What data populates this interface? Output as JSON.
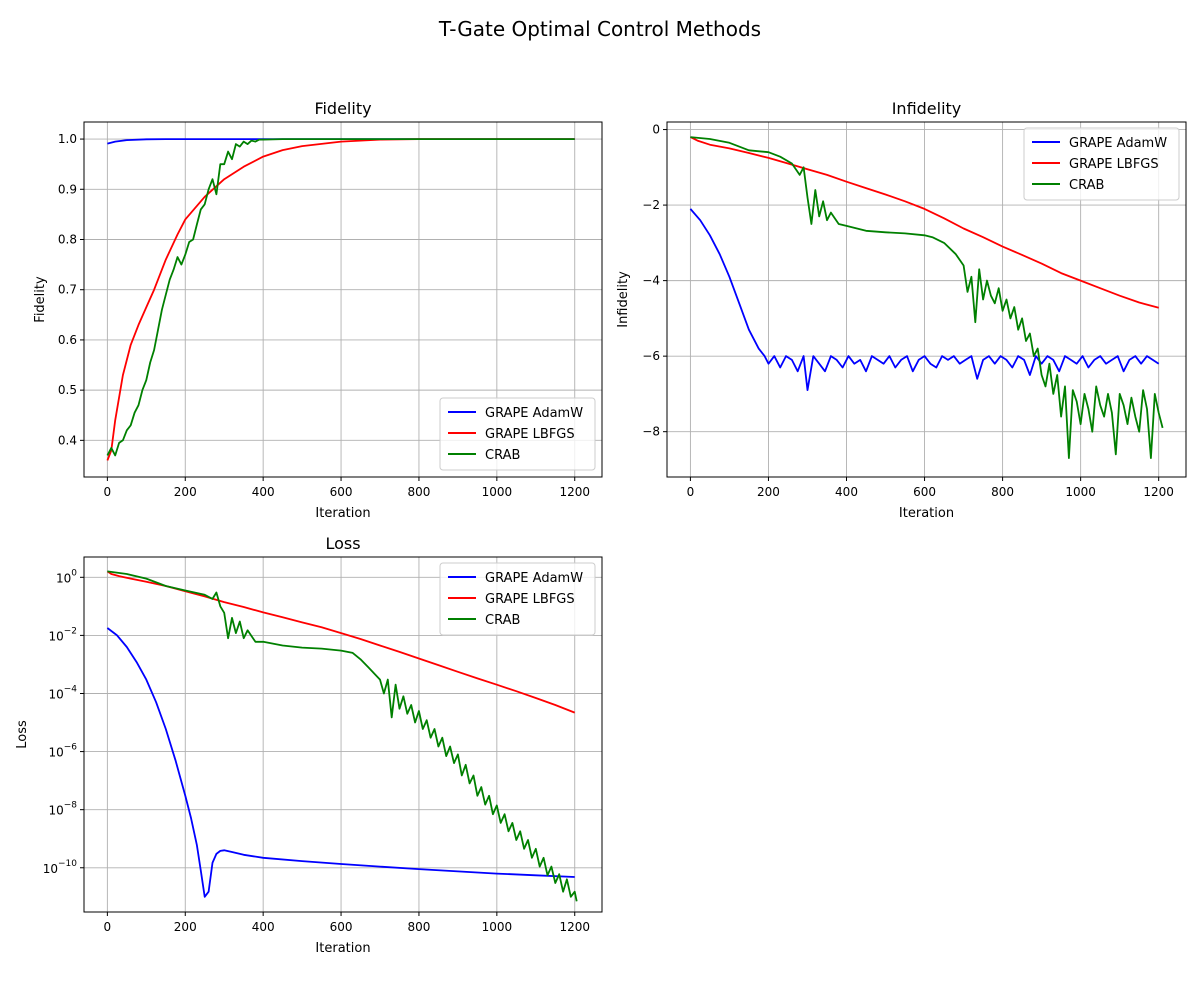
{
  "figure": {
    "title": "T-Gate Optimal Control Methods"
  },
  "series_styles": [
    {
      "name": "GRAPE AdamW",
      "color": "#0000ff"
    },
    {
      "name": "GRAPE LBFGS",
      "color": "#ff0000"
    },
    {
      "name": "CRAB",
      "color": "#008000"
    }
  ],
  "chart_data": [
    {
      "id": "fidelity",
      "type": "line",
      "title": "Fidelity",
      "xlabel": "Iteration",
      "ylabel": "Fidelity",
      "xlim": [
        -60,
        1270
      ],
      "ylim": [
        0.327,
        1.034
      ],
      "xticks": [
        0,
        200,
        400,
        600,
        800,
        1000,
        1200
      ],
      "xtick_labels": [
        "0",
        "200",
        "400",
        "600",
        "800",
        "1000",
        "1200"
      ],
      "yticks": [
        0.4,
        0.5,
        0.6,
        0.7,
        0.8,
        0.9,
        1.0
      ],
      "ytick_labels": [
        "0.4",
        "0.5",
        "0.6",
        "0.7",
        "0.8",
        "0.9",
        "1.0"
      ],
      "grid": true,
      "legend_position": "lower-right",
      "series": [
        {
          "name": "GRAPE AdamW",
          "x": [
            0,
            20,
            50,
            100,
            150,
            200,
            400,
            600,
            800,
            1000,
            1200
          ],
          "y": [
            0.991,
            0.995,
            0.998,
            0.9995,
            1.0,
            1.0,
            1.0,
            1.0,
            1.0,
            1.0,
            1.0
          ]
        },
        {
          "name": "GRAPE LBFGS",
          "x": [
            0,
            10,
            20,
            40,
            60,
            80,
            100,
            120,
            150,
            180,
            200,
            250,
            300,
            350,
            400,
            450,
            500,
            600,
            700,
            800,
            1000,
            1200
          ],
          "y": [
            0.36,
            0.38,
            0.44,
            0.53,
            0.59,
            0.63,
            0.665,
            0.7,
            0.76,
            0.81,
            0.84,
            0.885,
            0.92,
            0.945,
            0.965,
            0.978,
            0.986,
            0.995,
            0.999,
            1.0,
            1.0,
            1.0
          ]
        },
        {
          "name": "CRAB",
          "x": [
            0,
            10,
            20,
            30,
            40,
            50,
            60,
            70,
            80,
            90,
            100,
            110,
            120,
            130,
            140,
            150,
            160,
            170,
            180,
            190,
            200,
            210,
            220,
            230,
            240,
            250,
            260,
            270,
            280,
            290,
            300,
            310,
            320,
            330,
            340,
            350,
            360,
            370,
            380,
            390,
            400,
            450,
            500,
            600,
            800,
            1000,
            1200
          ],
          "y": [
            0.37,
            0.385,
            0.37,
            0.395,
            0.4,
            0.42,
            0.43,
            0.455,
            0.47,
            0.5,
            0.52,
            0.555,
            0.58,
            0.62,
            0.66,
            0.69,
            0.72,
            0.74,
            0.765,
            0.75,
            0.77,
            0.795,
            0.8,
            0.83,
            0.86,
            0.87,
            0.9,
            0.92,
            0.89,
            0.95,
            0.95,
            0.975,
            0.96,
            0.99,
            0.985,
            0.995,
            0.99,
            0.997,
            0.995,
            0.999,
            0.999,
            1.0,
            1.0,
            1.0,
            1.0,
            1.0,
            1.0
          ]
        }
      ]
    },
    {
      "id": "infidelity",
      "type": "line",
      "title": "Infidelity",
      "xlabel": "Iteration",
      "ylabel": "Infidelity",
      "xlim": [
        -60,
        1270
      ],
      "ylim": [
        -9.2,
        0.2
      ],
      "xticks": [
        0,
        200,
        400,
        600,
        800,
        1000,
        1200
      ],
      "xtick_labels": [
        "0",
        "200",
        "400",
        "600",
        "800",
        "1000",
        "1200"
      ],
      "yticks": [
        -8,
        -6,
        -4,
        -2,
        0
      ],
      "ytick_labels": [
        "−8",
        "−6",
        "−4",
        "−2",
        "0"
      ],
      "grid": true,
      "legend_position": "top-right",
      "series": [
        {
          "name": "GRAPE AdamW",
          "x": [
            0,
            25,
            50,
            75,
            100,
            125,
            150,
            175,
            190,
            200,
            215,
            230,
            245,
            260,
            275,
            290,
            300,
            315,
            330,
            345,
            360,
            375,
            390,
            405,
            420,
            435,
            450,
            465,
            480,
            495,
            510,
            525,
            540,
            555,
            570,
            585,
            600,
            615,
            630,
            645,
            660,
            675,
            690,
            705,
            720,
            735,
            750,
            765,
            780,
            795,
            810,
            825,
            840,
            855,
            870,
            885,
            900,
            915,
            930,
            945,
            960,
            975,
            990,
            1005,
            1020,
            1035,
            1050,
            1065,
            1080,
            1095,
            1110,
            1125,
            1140,
            1155,
            1170,
            1185,
            1200
          ],
          "y": [
            -2.1,
            -2.4,
            -2.8,
            -3.3,
            -3.9,
            -4.6,
            -5.3,
            -5.8,
            -6.0,
            -6.2,
            -6.0,
            -6.3,
            -6.0,
            -6.1,
            -6.4,
            -6.0,
            -6.9,
            -6.0,
            -6.2,
            -6.4,
            -6.0,
            -6.1,
            -6.3,
            -6.0,
            -6.2,
            -6.1,
            -6.4,
            -6.0,
            -6.1,
            -6.2,
            -6.0,
            -6.3,
            -6.1,
            -6.0,
            -6.4,
            -6.1,
            -6.0,
            -6.2,
            -6.3,
            -6.0,
            -6.1,
            -6.0,
            -6.2,
            -6.1,
            -6.0,
            -6.6,
            -6.1,
            -6.0,
            -6.2,
            -6.0,
            -6.1,
            -6.3,
            -6.0,
            -6.1,
            -6.5,
            -6.0,
            -6.2,
            -6.0,
            -6.1,
            -6.4,
            -6.0,
            -6.1,
            -6.2,
            -6.0,
            -6.3,
            -6.1,
            -6.0,
            -6.2,
            -6.1,
            -6.0,
            -6.4,
            -6.1,
            -6.0,
            -6.2,
            -6.0,
            -6.1,
            -6.2
          ]
        },
        {
          "name": "GRAPE LBFGS",
          "x": [
            0,
            20,
            50,
            100,
            150,
            200,
            250,
            300,
            350,
            400,
            450,
            500,
            550,
            600,
            650,
            700,
            750,
            800,
            850,
            900,
            950,
            1000,
            1050,
            1100,
            1150,
            1200
          ],
          "y": [
            -0.2,
            -0.3,
            -0.4,
            -0.5,
            -0.62,
            -0.75,
            -0.9,
            -1.05,
            -1.2,
            -1.38,
            -1.55,
            -1.72,
            -1.9,
            -2.1,
            -2.35,
            -2.62,
            -2.85,
            -3.1,
            -3.32,
            -3.55,
            -3.8,
            -4.0,
            -4.2,
            -4.4,
            -4.58,
            -4.72
          ]
        },
        {
          "name": "CRAB",
          "x": [
            0,
            50,
            100,
            150,
            200,
            230,
            260,
            280,
            290,
            300,
            310,
            320,
            330,
            340,
            350,
            360,
            380,
            400,
            450,
            500,
            550,
            600,
            620,
            650,
            680,
            700,
            710,
            720,
            730,
            740,
            750,
            760,
            770,
            780,
            790,
            800,
            810,
            820,
            830,
            840,
            850,
            860,
            870,
            880,
            890,
            900,
            910,
            920,
            930,
            940,
            950,
            960,
            970,
            980,
            990,
            1000,
            1010,
            1020,
            1030,
            1040,
            1050,
            1060,
            1070,
            1080,
            1090,
            1100,
            1110,
            1120,
            1130,
            1140,
            1150,
            1160,
            1170,
            1180,
            1190,
            1200,
            1210
          ],
          "y": [
            -0.2,
            -0.25,
            -0.35,
            -0.55,
            -0.6,
            -0.72,
            -0.9,
            -1.2,
            -1.0,
            -1.8,
            -2.5,
            -1.6,
            -2.3,
            -1.9,
            -2.4,
            -2.2,
            -2.5,
            -2.55,
            -2.68,
            -2.72,
            -2.75,
            -2.8,
            -2.85,
            -3.0,
            -3.3,
            -3.6,
            -4.3,
            -3.9,
            -5.1,
            -3.7,
            -4.5,
            -4.0,
            -4.4,
            -4.6,
            -4.2,
            -4.8,
            -4.5,
            -5.0,
            -4.7,
            -5.3,
            -5.0,
            -5.6,
            -5.4,
            -6.0,
            -5.8,
            -6.5,
            -6.8,
            -6.2,
            -7.0,
            -6.5,
            -7.6,
            -6.8,
            -8.7,
            -6.9,
            -7.2,
            -7.8,
            -7.0,
            -7.4,
            -8.0,
            -6.8,
            -7.3,
            -7.6,
            -7.0,
            -7.5,
            -8.6,
            -7.0,
            -7.3,
            -7.8,
            -7.1,
            -7.6,
            -8.0,
            -6.9,
            -7.4,
            -8.7,
            -7.0,
            -7.5,
            -7.9
          ]
        }
      ]
    },
    {
      "id": "loss",
      "type": "line",
      "title": "Loss",
      "xlabel": "Iteration",
      "ylabel": "Loss",
      "yscale": "log",
      "xlim": [
        -60,
        1270
      ],
      "ylim": [
        3e-12,
        5
      ],
      "xticks": [
        0,
        200,
        400,
        600,
        800,
        1000,
        1200
      ],
      "xtick_labels": [
        "0",
        "200",
        "400",
        "600",
        "800",
        "1000",
        "1200"
      ],
      "yticks": [
        1e-10,
        1e-08,
        1e-06,
        0.0001,
        0.01,
        1
      ],
      "ytick_labels": [
        {
          "base": "10",
          "exp": "−10"
        },
        {
          "base": "10",
          "exp": "−8"
        },
        {
          "base": "10",
          "exp": "−6"
        },
        {
          "base": "10",
          "exp": "−4"
        },
        {
          "base": "10",
          "exp": "−2"
        },
        {
          "base": "10",
          "exp": "0"
        }
      ],
      "grid": true,
      "legend_position": "top-right",
      "series": [
        {
          "name": "GRAPE AdamW",
          "x": [
            0,
            25,
            50,
            75,
            100,
            125,
            150,
            175,
            200,
            215,
            230,
            240,
            250,
            260,
            270,
            280,
            290,
            300,
            320,
            350,
            400,
            500,
            600,
            700,
            800,
            900,
            1000,
            1100,
            1200
          ],
          "y": [
            0.018,
            0.01,
            0.004,
            0.0012,
            0.0003,
            5e-05,
            6e-06,
            5e-07,
            3e-08,
            5e-09,
            6e-10,
            8e-11,
            1e-11,
            1.5e-11,
            1.5e-10,
            3e-10,
            3.8e-10,
            4e-10,
            3.5e-10,
            2.8e-10,
            2.2e-10,
            1.7e-10,
            1.35e-10,
            1.1e-10,
            9e-11,
            7.5e-11,
            6.3e-11,
            5.5e-11,
            4.8e-11
          ]
        },
        {
          "name": "GRAPE LBFGS",
          "x": [
            0,
            10,
            30,
            60,
            100,
            150,
            200,
            250,
            300,
            350,
            400,
            450,
            500,
            550,
            600,
            650,
            700,
            750,
            800,
            850,
            900,
            950,
            1000,
            1050,
            1100,
            1150,
            1200
          ],
          "y": [
            1.6,
            1.3,
            1.1,
            0.9,
            0.7,
            0.5,
            0.33,
            0.22,
            0.14,
            0.095,
            0.062,
            0.042,
            0.028,
            0.019,
            0.012,
            0.0075,
            0.0045,
            0.0027,
            0.0016,
            0.00095,
            0.00056,
            0.00033,
            0.0002,
            0.00012,
            7e-05,
            4e-05,
            2.2e-05
          ]
        },
        {
          "name": "CRAB",
          "x": [
            0,
            50,
            100,
            150,
            200,
            250,
            270,
            280,
            290,
            300,
            310,
            320,
            330,
            340,
            350,
            360,
            380,
            400,
            450,
            500,
            550,
            600,
            630,
            650,
            670,
            700,
            710,
            720,
            730,
            740,
            750,
            760,
            770,
            780,
            790,
            800,
            810,
            820,
            830,
            840,
            850,
            860,
            870,
            880,
            890,
            900,
            910,
            920,
            930,
            940,
            950,
            960,
            970,
            980,
            990,
            1000,
            1010,
            1020,
            1030,
            1040,
            1050,
            1060,
            1070,
            1080,
            1090,
            1100,
            1110,
            1120,
            1130,
            1140,
            1150,
            1160,
            1170,
            1180,
            1190,
            1200,
            1205
          ],
          "y": [
            1.6,
            1.3,
            0.9,
            0.5,
            0.35,
            0.25,
            0.18,
            0.3,
            0.1,
            0.06,
            0.008,
            0.04,
            0.012,
            0.03,
            0.008,
            0.015,
            0.006,
            0.006,
            0.0045,
            0.0038,
            0.0035,
            0.003,
            0.0025,
            0.0015,
            0.0008,
            0.0003,
            0.0001,
            0.0003,
            1.5e-05,
            0.0002,
            3e-05,
            8e-05,
            2e-05,
            4e-05,
            1e-05,
            2.5e-05,
            6e-06,
            1.2e-05,
            3e-06,
            6e-06,
            1.5e-06,
            3e-06,
            7e-07,
            1.5e-06,
            4e-07,
            8e-07,
            1.5e-07,
            3.5e-07,
            8e-08,
            1.5e-07,
            3e-08,
            6e-08,
            1.5e-08,
            3e-08,
            7e-09,
            1.4e-08,
            3.5e-09,
            7e-09,
            1.8e-09,
            3.5e-09,
            9e-10,
            1.8e-09,
            4.5e-10,
            9e-10,
            2.2e-10,
            4.5e-10,
            1.1e-10,
            2.2e-10,
            5.5e-11,
            1.1e-10,
            3e-11,
            6e-11,
            1.5e-11,
            4e-11,
            1e-11,
            1.5e-11,
            7e-12
          ]
        }
      ]
    }
  ]
}
